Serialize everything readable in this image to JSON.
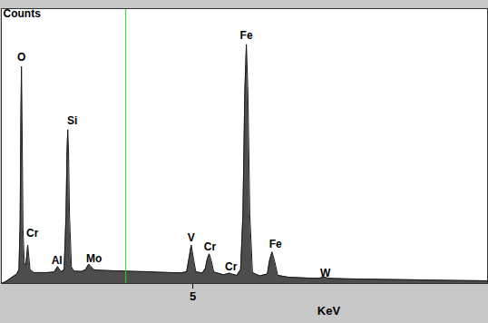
{
  "chart_data": {
    "type": "area",
    "y_label": "Counts",
    "x_label": "KeV",
    "x": [
      0,
      0.1,
      0.2,
      0.3,
      0.4,
      0.46,
      0.49,
      0.51,
      0.525,
      0.54,
      0.565,
      0.6,
      0.64,
      0.67,
      0.69,
      0.715,
      0.75,
      0.85,
      1.0,
      1.2,
      1.38,
      1.44,
      1.47,
      1.5,
      1.56,
      1.64,
      1.69,
      1.715,
      1.735,
      1.755,
      1.78,
      1.83,
      1.9,
      2.1,
      2.2,
      2.26,
      2.29,
      2.33,
      2.42,
      2.6,
      2.8,
      3.0,
      3.25,
      3.5,
      3.8,
      4.1,
      4.4,
      4.7,
      4.84,
      4.9,
      4.96,
      5.02,
      5.08,
      5.25,
      5.33,
      5.38,
      5.43,
      5.48,
      5.55,
      5.8,
      5.89,
      5.95,
      6.01,
      6.15,
      6.25,
      6.31,
      6.36,
      6.4,
      6.44,
      6.49,
      6.56,
      6.75,
      6.95,
      7.0,
      7.07,
      7.14,
      7.22,
      7.5,
      8.0,
      8.3,
      8.42,
      8.55,
      9.0,
      10,
      11,
      12,
      12.7
    ],
    "values": [
      0,
      0.6,
      1.5,
      2.5,
      3.4,
      5,
      22,
      60,
      79,
      60,
      20,
      7,
      7,
      11,
      14,
      10,
      5,
      4,
      4,
      4,
      4.2,
      5.5,
      6.2,
      5.5,
      4.3,
      5,
      25,
      48,
      56,
      48,
      25,
      6,
      4.5,
      4.4,
      5,
      6.5,
      7,
      6.3,
      5,
      4.8,
      4.7,
      4.6,
      4.5,
      4.4,
      4.3,
      4.1,
      4.0,
      3.9,
      4.3,
      9,
      14,
      9,
      4.3,
      3.8,
      5.5,
      9,
      10.8,
      8.5,
      4.2,
      3.2,
      3.5,
      3.8,
      3.5,
      3.0,
      5,
      25,
      70,
      87,
      70,
      25,
      4,
      2.8,
      3.5,
      8,
      11.5,
      8,
      3,
      2.3,
      2.0,
      1.9,
      2.4,
      1.9,
      1.7,
      1.5,
      1.3,
      1.1,
      1.0
    ],
    "color": "#4d4d4d",
    "xlim": [
      0,
      12.7
    ],
    "xticks": [
      5
    ],
    "ylim": [
      0,
      100
    ],
    "tick_labels": "x",
    "cursor_x": 3.25,
    "annotations": [
      {
        "text": "O",
        "x": 0.525,
        "y": 81
      },
      {
        "text": "Cr",
        "x": 0.81,
        "y": 17
      },
      {
        "text": "Al",
        "x": 1.45,
        "y": 7
      },
      {
        "text": "Si",
        "x": 1.85,
        "y": 58
      },
      {
        "text": "Mo",
        "x": 2.42,
        "y": 7.6
      },
      {
        "text": "V",
        "x": 4.96,
        "y": 15.5
      },
      {
        "text": "Cr",
        "x": 5.45,
        "y": 12
      },
      {
        "text": "Cr",
        "x": 6.0,
        "y": 4.8
      },
      {
        "text": "Fe",
        "x": 6.4,
        "y": 89
      },
      {
        "text": "Fe",
        "x": 7.16,
        "y": 13
      },
      {
        "text": "W",
        "x": 8.46,
        "y": 2.6
      }
    ]
  }
}
